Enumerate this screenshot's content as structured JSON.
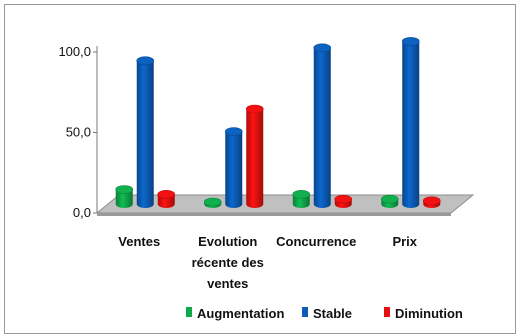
{
  "chart_data": {
    "type": "bar",
    "categories": [
      [
        "Ventes"
      ],
      [
        "Evolution",
        "récente des",
        "ventes"
      ],
      [
        "Concurrence"
      ],
      [
        "Prix"
      ]
    ],
    "series": [
      {
        "name": "Augmentation",
        "color": "#10a84a",
        "values": [
          9,
          1,
          6,
          3
        ]
      },
      {
        "name": "Stable",
        "color": "#0b5db8",
        "values": [
          89,
          45,
          97,
          101
        ]
      },
      {
        "name": "Diminution",
        "color": "#e81010",
        "values": [
          6,
          59,
          3,
          2
        ]
      }
    ],
    "y_ticks": [
      "0,0",
      "50,0",
      "100,0"
    ],
    "ylim": [
      0,
      100
    ],
    "grid": false,
    "legend_position": "bottom",
    "floor_color": "#c0c0c0"
  }
}
